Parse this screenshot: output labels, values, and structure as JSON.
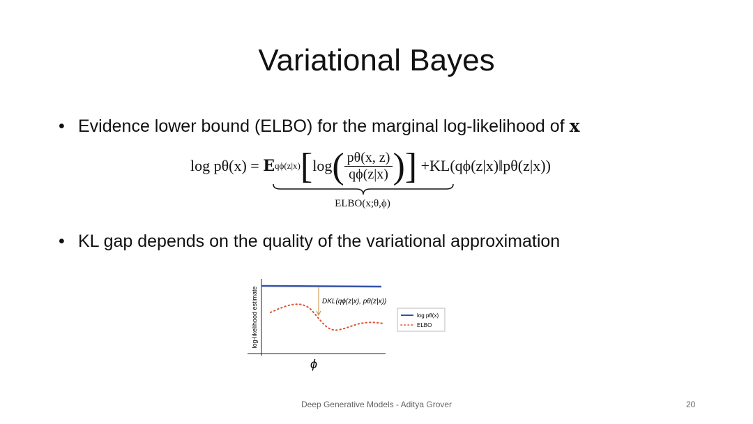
{
  "title": "Variational Bayes",
  "bullets": [
    {
      "text": "Evidence lower bound (ELBO) for the marginal log-likelihood of",
      "math": "x"
    },
    {
      "text": "KL gap depends on the quality of the variational approximation"
    }
  ],
  "equation": {
    "lhs": "log pθ(x) =",
    "expectation": "E",
    "subscript": "qϕ(z|x)",
    "log": "log",
    "numerator": "pθ(x, z)",
    "denominator": "qϕ(z|x)",
    "kl": "+KL(qϕ(z|x)‖pθ(z|x))",
    "brace_label": "ELBO(x;θ,ϕ)"
  },
  "figure": {
    "y_label": "log-likelihood estimate",
    "x_label": "ϕ",
    "annotation": "DKL(qϕ(z|x), pθ(z|x))",
    "legend": [
      "log pθ(x)",
      "ELBO"
    ]
  },
  "footer": {
    "text": "Deep Generative Models - Aditya Grover",
    "page": 20
  }
}
